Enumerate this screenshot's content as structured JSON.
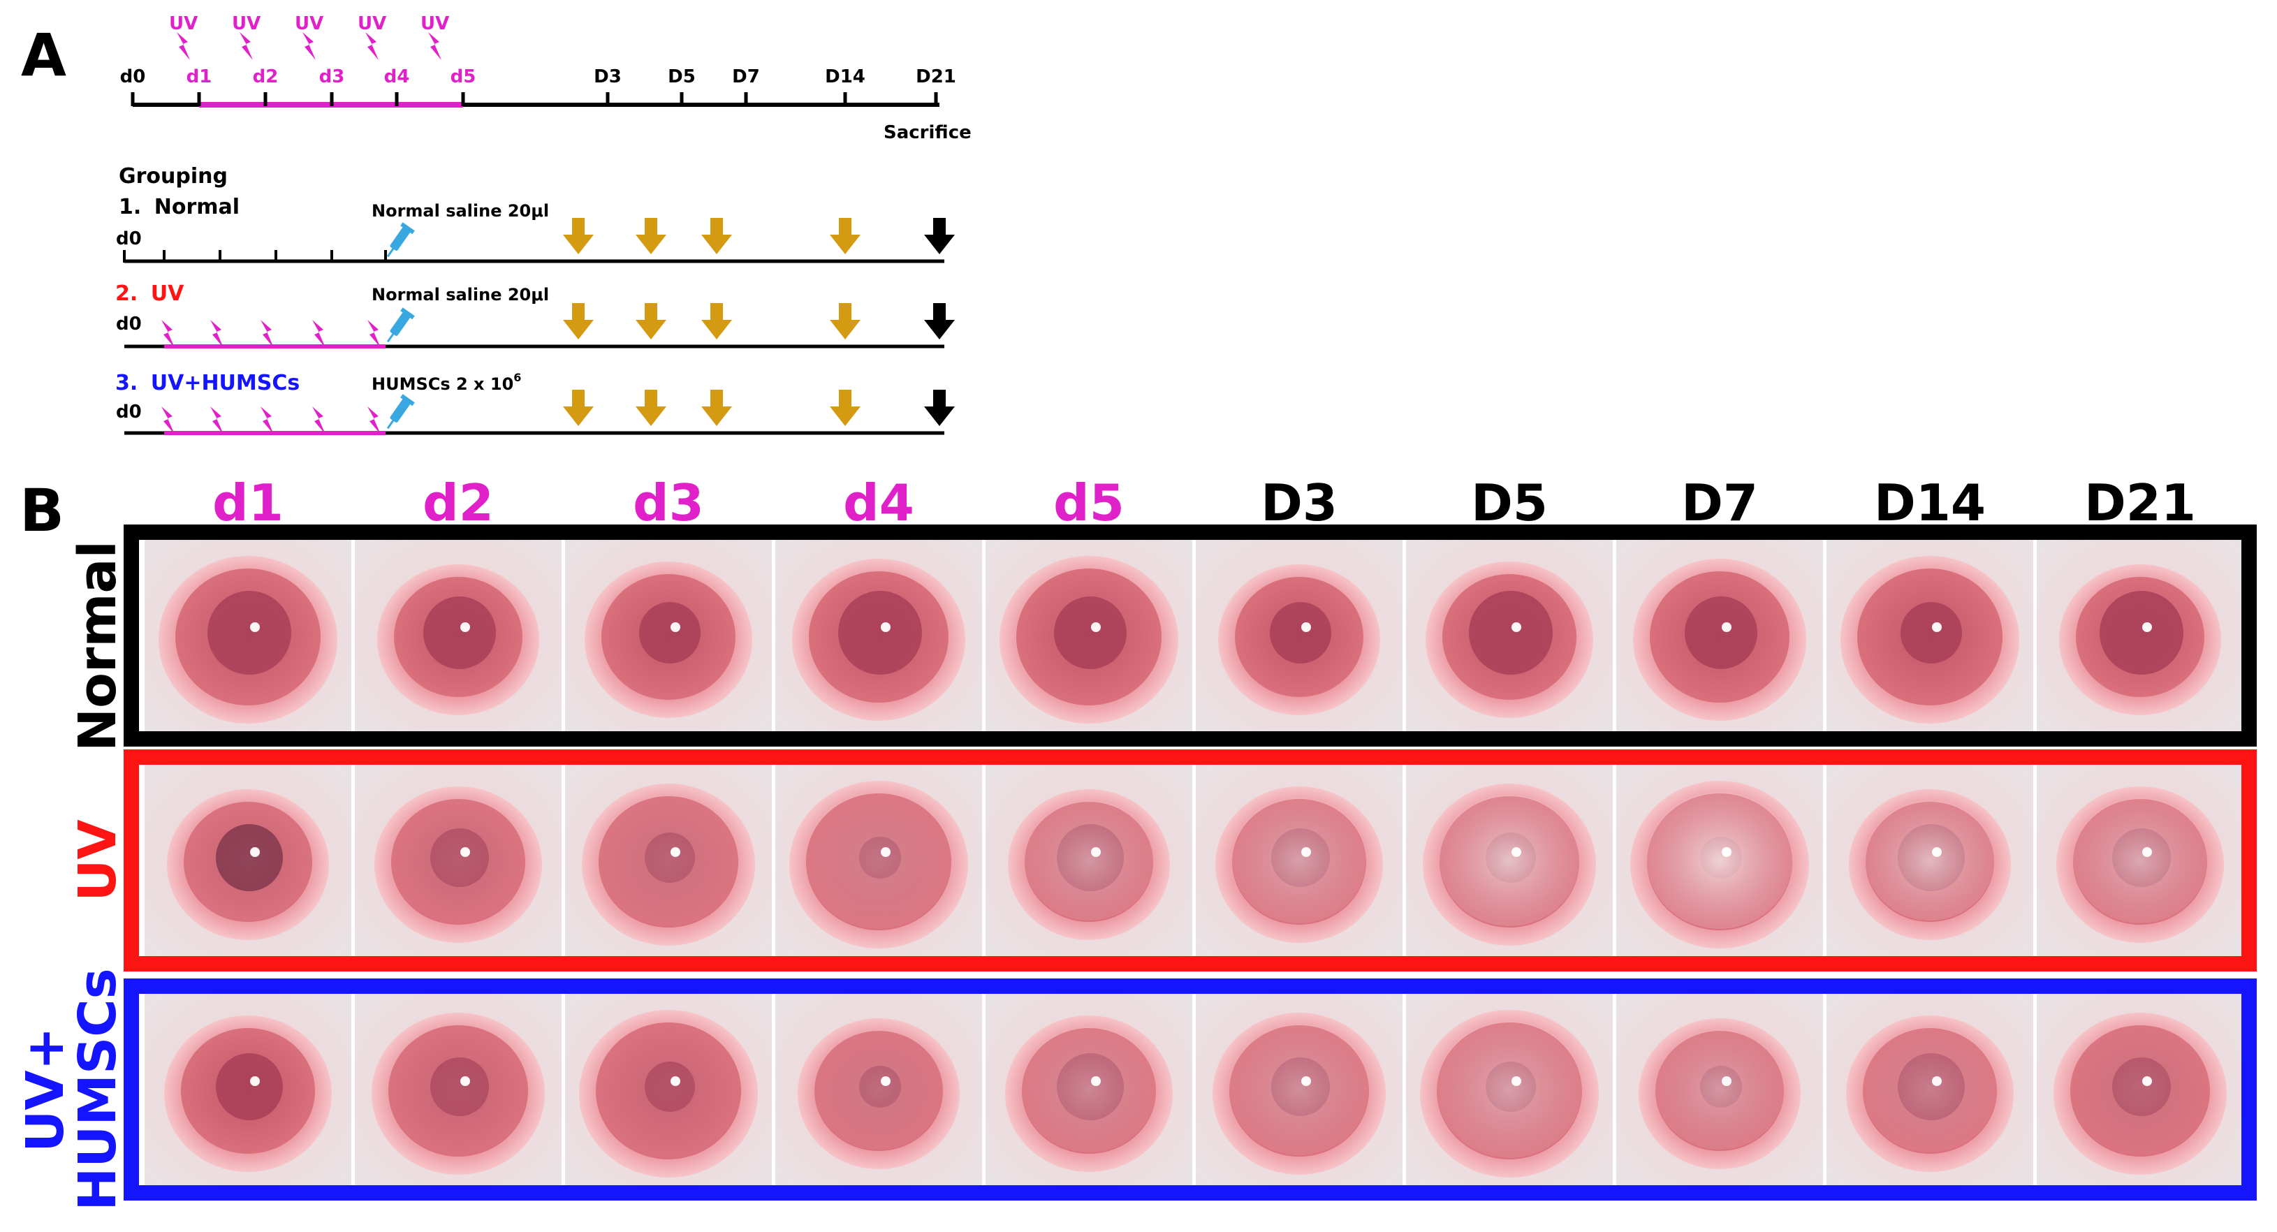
{
  "colors": {
    "uv": "#e020c8",
    "red": "#ff1414",
    "blue": "#1414ff",
    "black": "#000000",
    "gold_arrow": "#d49a12",
    "syringe": "#3aa8e0"
  },
  "panel_a": {
    "letter": "A",
    "uv_labels": [
      "UV",
      "UV",
      "UV",
      "UV",
      "UV"
    ],
    "day_labels": [
      "d0",
      "d1",
      "d2",
      "d3",
      "d4",
      "d5"
    ],
    "followup_labels": [
      "D3",
      "D5",
      "D7",
      "D14",
      "D21"
    ],
    "sacrifice_label": "Sacrifice",
    "grouping_title": "Grouping",
    "groups": [
      {
        "number": "1.",
        "name": "Normal",
        "d0": "d0",
        "treatment": "Normal saline 20μl"
      },
      {
        "number": "2.",
        "name": "UV",
        "d0": "d0",
        "treatment": "Normal saline 20μl"
      },
      {
        "number": "3.",
        "name": "UV+HUMSCs",
        "d0": "d0",
        "treatment_base": "HUMSCs 2 x 10",
        "treatment_exp": "6"
      }
    ]
  },
  "panel_b": {
    "letter": "B",
    "columns": [
      "d1",
      "d2",
      "d3",
      "d4",
      "d5",
      "D3",
      "D5",
      "D7",
      "D14",
      "D21"
    ],
    "rows": [
      {
        "label": "Normal"
      },
      {
        "label": "UV"
      },
      {
        "label_line1": "UV+",
        "label_line2": "HUMSCs"
      }
    ],
    "eye_opacity_levels": [
      [
        0.05,
        0.05,
        0.05,
        0.05,
        0.05,
        0.05,
        0.05,
        0.05,
        0.05,
        0.05
      ],
      [
        0.1,
        0.15,
        0.2,
        0.3,
        0.5,
        0.55,
        0.75,
        0.85,
        0.7,
        0.6
      ],
      [
        0.05,
        0.1,
        0.1,
        0.25,
        0.4,
        0.45,
        0.55,
        0.5,
        0.35,
        0.2
      ]
    ]
  }
}
